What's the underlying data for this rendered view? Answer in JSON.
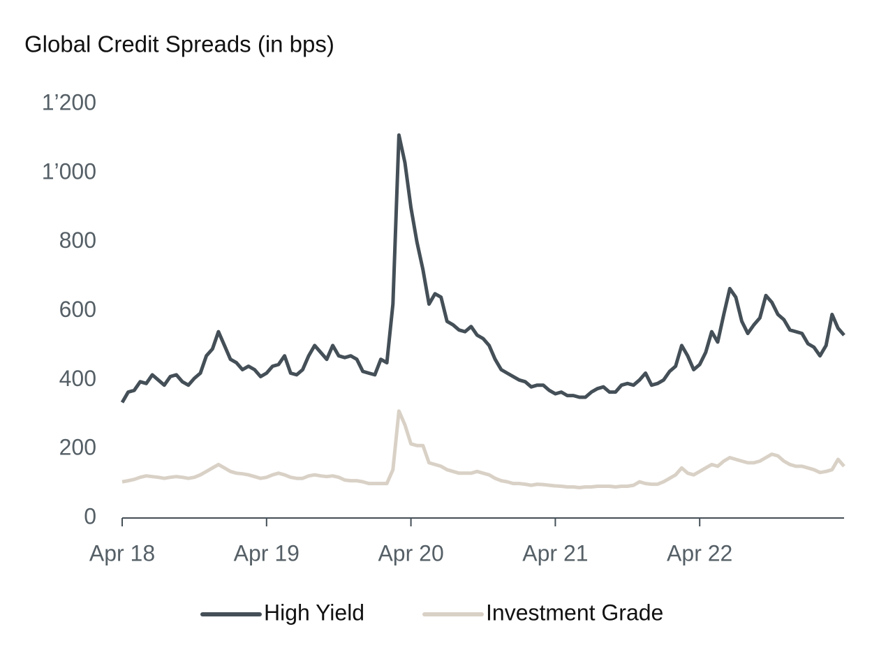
{
  "chart_data": {
    "type": "line",
    "title": "Global Credit Spreads (in bps)",
    "categories": [
      "Apr 18",
      null,
      null,
      null,
      null,
      null,
      null,
      null,
      null,
      null,
      null,
      null,
      null,
      null,
      null,
      null,
      null,
      null,
      null,
      null,
      null,
      null,
      null,
      null,
      "Apr 19",
      null,
      null,
      null,
      null,
      null,
      null,
      null,
      null,
      null,
      null,
      null,
      null,
      null,
      null,
      null,
      null,
      null,
      null,
      null,
      null,
      null,
      null,
      null,
      "Apr 20",
      null,
      null,
      null,
      null,
      null,
      null,
      null,
      null,
      null,
      null,
      null,
      null,
      null,
      null,
      null,
      null,
      null,
      null,
      null,
      null,
      null,
      null,
      null,
      "Apr 21",
      null,
      null,
      null,
      null,
      null,
      null,
      null,
      null,
      null,
      null,
      null,
      null,
      null,
      null,
      null,
      null,
      null,
      null,
      null,
      null,
      null,
      null,
      null,
      "Apr 22",
      null,
      null,
      null,
      null,
      null,
      null,
      null,
      null,
      null,
      null,
      null,
      null,
      null,
      null,
      null,
      null,
      null,
      null,
      null,
      null,
      null,
      null,
      null,
      null
    ],
    "series": [
      {
        "name": "High Yield",
        "color": "#444f57",
        "values": [
          335,
          365,
          370,
          395,
          390,
          415,
          400,
          385,
          410,
          415,
          395,
          385,
          405,
          420,
          470,
          490,
          540,
          500,
          460,
          450,
          430,
          440,
          430,
          410,
          420,
          440,
          445,
          470,
          420,
          415,
          430,
          470,
          500,
          480,
          460,
          500,
          470,
          465,
          470,
          460,
          425,
          420,
          415,
          460,
          450,
          620,
          1110,
          1030,
          900,
          800,
          720,
          620,
          650,
          640,
          570,
          560,
          545,
          540,
          555,
          530,
          520,
          500,
          460,
          430,
          420,
          410,
          400,
          395,
          380,
          385,
          385,
          370,
          360,
          365,
          355,
          355,
          350,
          350,
          365,
          375,
          380,
          365,
          365,
          385,
          390,
          385,
          400,
          420,
          385,
          390,
          400,
          425,
          440,
          500,
          470,
          430,
          445,
          480,
          540,
          510,
          590,
          665,
          640,
          570,
          535,
          560,
          580,
          645,
          625,
          590,
          575,
          545,
          540,
          535,
          505,
          495,
          470,
          500,
          590,
          550,
          530
        ]
      },
      {
        "name": "Investment Grade",
        "color": "#d9d1c6",
        "values": [
          105,
          108,
          112,
          118,
          122,
          120,
          118,
          115,
          118,
          120,
          118,
          115,
          118,
          125,
          135,
          145,
          155,
          145,
          135,
          130,
          128,
          125,
          120,
          115,
          118,
          125,
          130,
          125,
          118,
          115,
          115,
          122,
          125,
          122,
          120,
          122,
          118,
          110,
          108,
          108,
          105,
          100,
          100,
          100,
          100,
          140,
          310,
          270,
          215,
          210,
          210,
          160,
          155,
          150,
          140,
          135,
          130,
          130,
          130,
          135,
          130,
          125,
          115,
          108,
          105,
          100,
          100,
          98,
          95,
          98,
          97,
          95,
          93,
          92,
          90,
          90,
          88,
          90,
          90,
          92,
          92,
          92,
          90,
          92,
          92,
          95,
          105,
          100,
          98,
          98,
          105,
          115,
          125,
          145,
          130,
          125,
          135,
          145,
          155,
          150,
          165,
          175,
          170,
          165,
          160,
          160,
          165,
          175,
          185,
          180,
          165,
          155,
          150,
          150,
          145,
          140,
          132,
          135,
          140,
          170,
          150
        ]
      }
    ],
    "ylim": [
      0,
      1200
    ],
    "yticks": [
      0,
      200,
      400,
      600,
      800,
      {
        "value": 1000,
        "label": "1’000"
      },
      {
        "value": 1200,
        "label": "1’200"
      }
    ],
    "grid": false
  }
}
